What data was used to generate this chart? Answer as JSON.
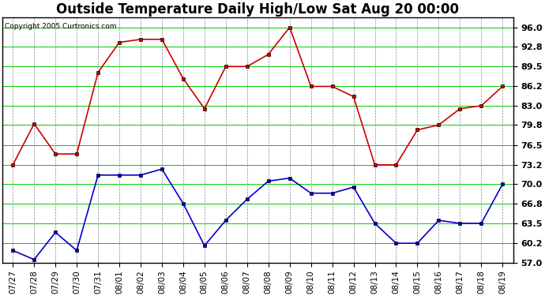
{
  "title": "Outside Temperature Daily High/Low Sat Aug 20 00:00",
  "copyright": "Copyright 2005 Curtronics.com",
  "x_labels": [
    "07/27",
    "07/28",
    "07/29",
    "07/30",
    "07/31",
    "08/01",
    "08/02",
    "08/03",
    "08/04",
    "08/05",
    "08/06",
    "08/07",
    "08/08",
    "08/09",
    "08/10",
    "08/11",
    "08/12",
    "08/13",
    "08/14",
    "08/15",
    "08/16",
    "08/17",
    "08/18",
    "08/19"
  ],
  "high_values": [
    73.2,
    80.0,
    75.0,
    75.0,
    88.5,
    93.5,
    94.0,
    94.0,
    87.5,
    82.5,
    89.5,
    89.5,
    91.5,
    96.0,
    86.2,
    86.2,
    84.5,
    73.2,
    73.2,
    79.0,
    79.8,
    82.5,
    83.0,
    86.2
  ],
  "low_values": [
    59.0,
    57.5,
    62.0,
    59.0,
    71.5,
    71.5,
    71.5,
    72.5,
    66.8,
    59.8,
    64.0,
    67.5,
    70.5,
    71.0,
    68.5,
    68.5,
    69.5,
    63.5,
    60.2,
    60.2,
    64.0,
    63.5,
    63.5,
    70.0
  ],
  "high_color": "#cc0000",
  "low_color": "#0000cc",
  "bg_color": "#ffffff",
  "plot_bg_color": "#ffffff",
  "hgrid_color": "#00cc00",
  "vgrid_color": "#888888",
  "border_color": "#000000",
  "ylim": [
    57.0,
    97.6
  ],
  "yticks": [
    57.0,
    60.2,
    63.5,
    66.8,
    70.0,
    73.2,
    76.5,
    79.8,
    83.0,
    86.2,
    89.5,
    92.8,
    96.0
  ],
  "title_fontsize": 12,
  "marker": "s",
  "marker_size": 3
}
